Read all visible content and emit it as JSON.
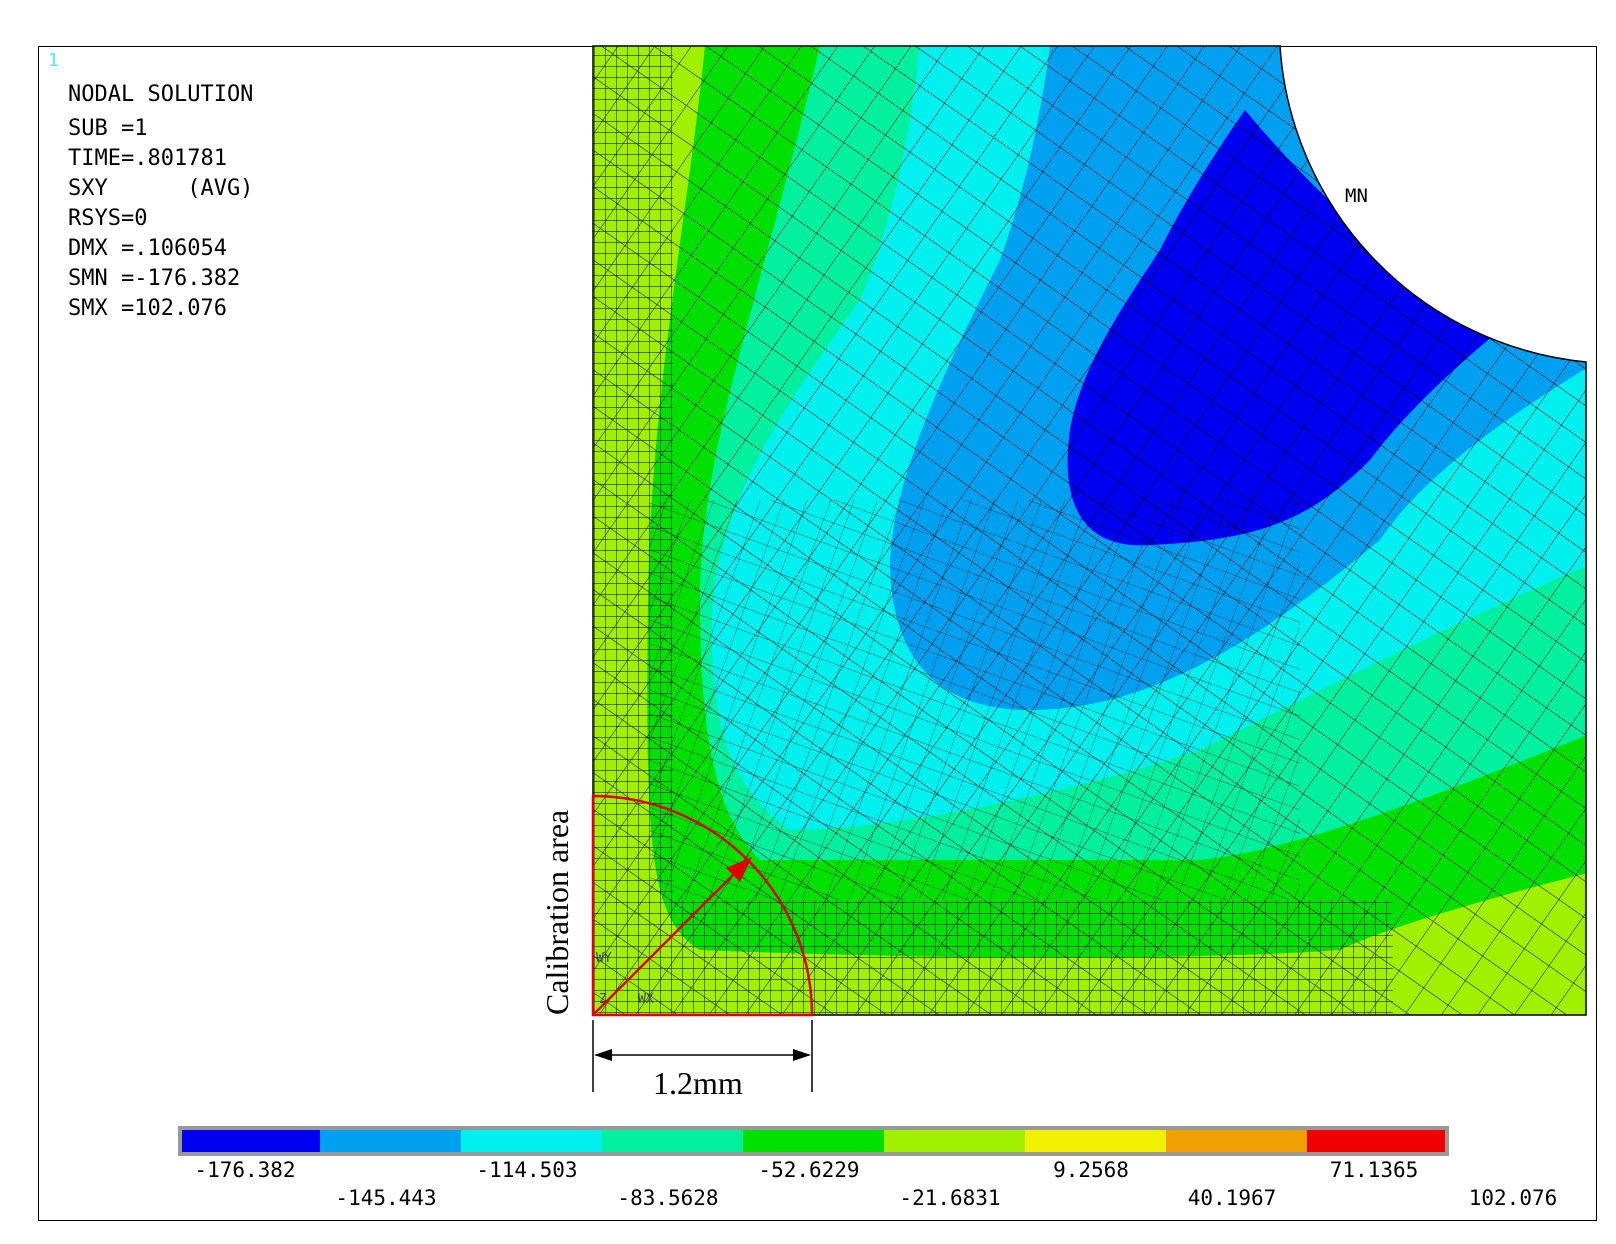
{
  "window_number": "1",
  "info": {
    "title": "NODAL SOLUTION",
    "lines": [
      "SUB =1",
      "TIME=.801781",
      "SXY      (AVG)",
      "RSYS=0",
      "DMX =.106054",
      "SMN =-176.382",
      "SMX =102.076"
    ]
  },
  "model": {
    "min_marker": "MN",
    "triad_labels": [
      "WY",
      "WX",
      "Z"
    ]
  },
  "annotations": {
    "calibration_label": "Calibration area",
    "dimension_label": "1.2mm"
  },
  "colors": {
    "band_1": "#0000f0",
    "band_2": "#00a0f0",
    "band_3": "#00f0f0",
    "band_4": "#00f0a0",
    "band_5": "#00e000",
    "band_6": "#a0f000",
    "band_7": "#f0f000",
    "band_8": "#f0a000",
    "band_9": "#f00000",
    "annotation": "#e00000"
  },
  "legend": {
    "values_top": [
      "-176.382",
      "-114.503",
      "-52.6229",
      "9.2568",
      "71.1365"
    ],
    "values_bottom": [
      "-145.443",
      "-83.5628",
      "-21.6831",
      "40.1967",
      "102.076"
    ]
  }
}
